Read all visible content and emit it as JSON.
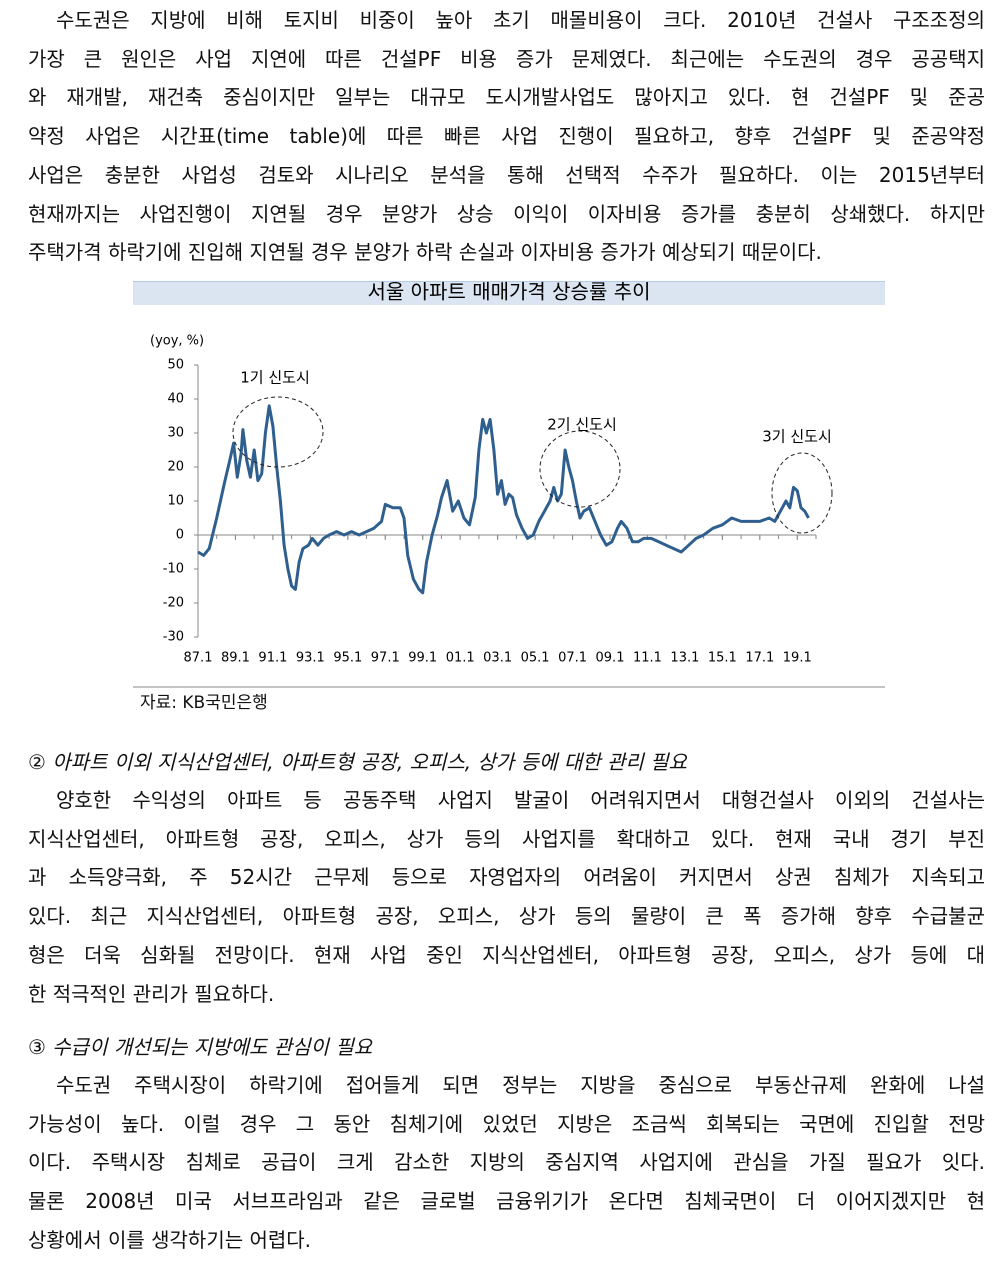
{
  "paragraphs": [
    {
      "lines": [
        "수도권은 지방에 비해 토지비 비중이 높아 초기 매몰비용이 크다. 2010년 건설사 구조조정의",
        "가장 큰 원인은 사업 지연에 따른 건설PF 비용 증가 문제였다. 최근에는 수도권의 경우 공공택지",
        "와 재개발, 재건축 중심이지만 일부는 대규모 도시개발사업도 많아지고 있다. 현 건설PF 및 준공",
        "약정 사업은 시간표(time table)에 따른 빠른 사업 진행이 필요하고, 향후 건설PF 및 준공약정",
        "사업은 충분한 사업성 검토와 시나리오 분석을 통해 선택적 수주가 필요하다. 이는 2015년부터",
        "현재까지는 사업진행이 지연될 경우 분양가 상승 이익이 이자비용 증가를 충분히 상쇄했다. 하지만",
        "주택가격 하락기에 진입해 지연될 경우 분양가 하락 손실과 이자비용 증가가 예상되기 때문이다."
      ]
    },
    {
      "lines": [
        "양호한 수익성의 아파트 등 공동주택 사업지 발굴이 어려워지면서 대형건설사 이외의 건설사는",
        "지식산업센터, 아파트형 공장, 오피스, 상가 등의 사업지를 확대하고 있다. 현재 국내 경기 부진",
        "과 소득양극화, 주 52시간 근무제 등으로 자영업자의 어려움이 커지면서 상권 침체가 지속되고",
        "있다. 최근 지식산업센터, 아파트형 공장, 오피스, 상가 등의 물량이 큰 폭 증가해 향후 수급불균",
        "형은 더욱 심화될 전망이다. 현재 사업 중인 지식산업센터, 아파트형 공장, 오피스, 상가 등에 대",
        "한 적극적인 관리가 필요하다."
      ]
    },
    {
      "lines": [
        "수도권 주택시장이 하락기에 접어들게 되면 정부는 지방을 중심으로 부동산규제 완화에 나설",
        "가능성이 높다. 이럴 경우 그 동안 침체기에 있었던 지방은 조금씩 회복되는 국면에 진입할 전망",
        "이다. 주택시장 침체로 공급이 크게 감소한 지방의 중심지역 사업지에 관심을 가질 필요가 잇다.",
        "물론 2008년 미국 서브프라임과 같은 글로벌 금융위기가 온다면 침체국면이 더 이어지겠지만 현",
        "상황에서 이를 생각하기는 어렵다."
      ]
    }
  ],
  "headings": [
    "② 아파트 이외 지식산업센터, 아파트형 공장, 오피스, 상가 등에 대한 관리 필요",
    "③ 수급이 개선되는 지방에도 관심이 필요"
  ],
  "source": "자료: KB국민은행",
  "chart_data": {
    "type": "line",
    "title": "서울 아파트 매매가격 상승률 추이",
    "y_label": "(yoy, %)",
    "color": "#2e5f8e",
    "annotations": [
      "1기 신도시",
      "2기 신도시",
      "3기 신도시"
    ],
    "ylim": [
      -30,
      50
    ],
    "yticks": [
      -30,
      -20,
      -10,
      0,
      10,
      20,
      30,
      40,
      50
    ],
    "xlim": [
      1987,
      2020
    ],
    "xticks": [
      {
        "value": 1987,
        "label": "87.1"
      },
      {
        "value": 1989,
        "label": "89.1"
      },
      {
        "value": 1991,
        "label": "91.1"
      },
      {
        "value": 1993,
        "label": "93.1"
      },
      {
        "value": 1995,
        "label": "95.1"
      },
      {
        "value": 1997,
        "label": "97.1"
      },
      {
        "value": 1999,
        "label": "99.1"
      },
      {
        "value": 2001,
        "label": "01.1"
      },
      {
        "value": 2003,
        "label": "03.1"
      },
      {
        "value": 2005,
        "label": "05.1"
      },
      {
        "value": 2007,
        "label": "07.1"
      },
      {
        "value": 2009,
        "label": "09.1"
      },
      {
        "value": 2011,
        "label": "11.1"
      },
      {
        "value": 2013,
        "label": "13.1"
      },
      {
        "value": 2015,
        "label": "15.1"
      },
      {
        "value": 2017,
        "label": "17.1"
      },
      {
        "value": 2019,
        "label": "19.1"
      }
    ],
    "x": [
      1987.0,
      1987.3,
      1987.6,
      1988.0,
      1988.4,
      1988.7,
      1988.9,
      1989.1,
      1989.3,
      1989.4,
      1989.6,
      1989.8,
      1990.0,
      1990.2,
      1990.4,
      1990.6,
      1990.8,
      1991.0,
      1991.2,
      1991.4,
      1991.6,
      1991.8,
      1992.0,
      1992.2,
      1992.4,
      1992.6,
      1992.9,
      1993.1,
      1993.4,
      1993.7,
      1994.0,
      1994.4,
      1994.8,
      1995.2,
      1995.6,
      1996.0,
      1996.4,
      1996.8,
      1997.0,
      1997.4,
      1997.8,
      1998.0,
      1998.2,
      1998.5,
      1998.8,
      1999.0,
      1999.2,
      1999.5,
      1999.8,
      2000.0,
      2000.3,
      2000.6,
      2000.9,
      2001.2,
      2001.5,
      2001.8,
      2002.0,
      2002.2,
      2002.4,
      2002.6,
      2002.8,
      2003.0,
      2003.2,
      2003.4,
      2003.6,
      2003.8,
      2004.0,
      2004.3,
      2004.6,
      2004.9,
      2005.2,
      2005.5,
      2005.8,
      2006.0,
      2006.2,
      2006.4,
      2006.6,
      2006.8,
      2007.0,
      2007.2,
      2007.4,
      2007.6,
      2007.9,
      2008.2,
      2008.5,
      2008.8,
      2009.1,
      2009.4,
      2009.6,
      2009.9,
      2010.2,
      2010.5,
      2010.8,
      2011.2,
      2011.6,
      2012.0,
      2012.4,
      2012.8,
      2013.2,
      2013.6,
      2014.0,
      2014.5,
      2015.0,
      2015.5,
      2016.0,
      2016.5,
      2017.0,
      2017.5,
      2017.8,
      2018.0,
      2018.4,
      2018.6,
      2018.8,
      2019.0,
      2019.2,
      2019.4,
      2019.6
    ],
    "values": [
      -5,
      -6,
      -4,
      5,
      15,
      22,
      27,
      17,
      24,
      31,
      22,
      17,
      25,
      16,
      18,
      30,
      38,
      32,
      20,
      10,
      -3,
      -10,
      -15,
      -16,
      -8,
      -4,
      -3,
      -1,
      -3,
      -1,
      0,
      1,
      0,
      1,
      0,
      1,
      2,
      4,
      9,
      8,
      8,
      5,
      -6,
      -13,
      -16,
      -17,
      -8,
      0,
      6,
      11,
      16,
      7,
      10,
      5,
      3,
      11,
      25,
      34,
      30,
      34,
      25,
      12,
      16,
      9,
      12,
      11,
      6,
      2,
      -1,
      0,
      4,
      7,
      10,
      14,
      10,
      12,
      25,
      20,
      16,
      10,
      5,
      7,
      8,
      4,
      0,
      -3,
      -2,
      2,
      4,
      2,
      -2,
      -2,
      -1,
      -1,
      -2,
      -3,
      -4,
      -5,
      -3,
      -1,
      0,
      2,
      3,
      5,
      4,
      4,
      4,
      5,
      4,
      6,
      10,
      8,
      14,
      13,
      8,
      7,
      5
    ]
  }
}
